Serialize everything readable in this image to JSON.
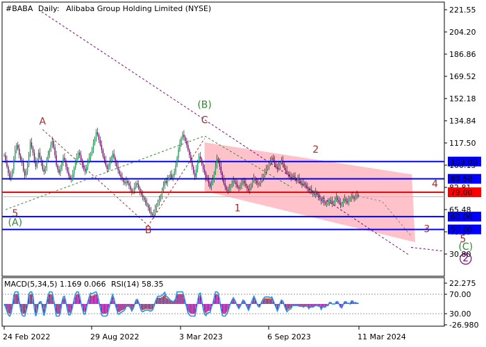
{
  "header": {
    "symbol": "#BABA",
    "timeframe": "Daily:",
    "instrument": "Alibaba Group Holding Limited (NYSE)"
  },
  "indicator": {
    "macd": "MACD(5,34,5) 1.169 0.066",
    "rsi": "RSI(14) 58.35"
  },
  "colors": {
    "bull": "#00b050",
    "bear": "#800080",
    "support_line": "#0000ff",
    "resistance_line": "#ff0000",
    "channel_fill": "#ffb6c1",
    "wave_green": "#2e8b2e",
    "wave_red": "#a52a2a",
    "wave_purple": "#800080",
    "macd_hist": "#800080",
    "rsi_line": "#1e90ff",
    "signal_line": "#ff4500"
  },
  "chart_data": {
    "type": "candlestick",
    "y_axis_labels": [
      "221.55",
      "204.20",
      "186.86",
      "169.52",
      "152.18",
      "134.84",
      "117.50",
      "100.15",
      "82.81",
      "65.48",
      "48.13",
      "30.80"
    ],
    "x_axis_labels": [
      "24 Feb 2022",
      "29 Aug 2022",
      "3 Mar 2023",
      "6 Sep 2023",
      "11 Mar 2024"
    ],
    "ylim": [
      20,
      225
    ],
    "levels": [
      {
        "label": "103.00",
        "value": 103.0,
        "kind": "support"
      },
      {
        "label": "89.50",
        "value": 89.5,
        "kind": "support"
      },
      {
        "label": "79.00",
        "value": 79.0,
        "kind": "resistance"
      },
      {
        "label": "60.00",
        "value": 60.0,
        "kind": "support"
      },
      {
        "label": "50.00",
        "value": 50.0,
        "kind": "support"
      }
    ],
    "current_price": 75.5,
    "closes": [
      108,
      104,
      99,
      94,
      90,
      92,
      96,
      105,
      112,
      116,
      113,
      108,
      104,
      102,
      96,
      92,
      95,
      100,
      109,
      118,
      114,
      110,
      103,
      99,
      104,
      110,
      106,
      102,
      97,
      95,
      98,
      104,
      108,
      112,
      116,
      119,
      114,
      108,
      100,
      97,
      94,
      97,
      102,
      106,
      104,
      99,
      95,
      92,
      90,
      89,
      93,
      98,
      103,
      106,
      110,
      108,
      104,
      100,
      97,
      95,
      99,
      103,
      106,
      109,
      112,
      117,
      121,
      126,
      124,
      120,
      116,
      112,
      107,
      104,
      100,
      97,
      99,
      103,
      106,
      109,
      106,
      102,
      99,
      96,
      93,
      91,
      89,
      87,
      86,
      88,
      86,
      84,
      81,
      79,
      80,
      83,
      86,
      85,
      82,
      79,
      77,
      75,
      73,
      71,
      69,
      67,
      64,
      62,
      61,
      63,
      66,
      69,
      71,
      73,
      76,
      80,
      84,
      88,
      86,
      89,
      91,
      93,
      90,
      92,
      95,
      100,
      106,
      112,
      117,
      121,
      124,
      122,
      119,
      116,
      112,
      108,
      103,
      99,
      94,
      91,
      97,
      103,
      107,
      105,
      101,
      97,
      94,
      90,
      89,
      86,
      83,
      86,
      89,
      94,
      100,
      105,
      103,
      99,
      94,
      90,
      86,
      83,
      81,
      80,
      82,
      84,
      86,
      88,
      87,
      85,
      83,
      82,
      84,
      86,
      88,
      86,
      84,
      82,
      80,
      82,
      85,
      88,
      90,
      88,
      86,
      85,
      86,
      88,
      90,
      92,
      95,
      97,
      99,
      101,
      103,
      106,
      104,
      101,
      99,
      97,
      99,
      102,
      104,
      101,
      98,
      96,
      94,
      93,
      91,
      90,
      92,
      91,
      89,
      88,
      90,
      88,
      86,
      85,
      86,
      85,
      83,
      82,
      80,
      81,
      79,
      78,
      77,
      79,
      77,
      75,
      74,
      72,
      73,
      71,
      70,
      70,
      71,
      73,
      72,
      70,
      71,
      73,
      75,
      73,
      71,
      69,
      70,
      72,
      74,
      72,
      71,
      73,
      74,
      76,
      75,
      74,
      76,
      77,
      76
    ]
  },
  "waves": [
    {
      "label": "A",
      "price": 132,
      "index": 28,
      "color": "wave_red"
    },
    {
      "label": "(B)",
      "price": 145,
      "index": 146,
      "color": "wave_green"
    },
    {
      "label": "C",
      "price": 133,
      "index": 146,
      "color": "wave_red"
    },
    {
      "label": "2",
      "price": 110,
      "index": 227,
      "color": "wave_red"
    },
    {
      "label": "4",
      "price": 83,
      "index": 344,
      "color": "wave_red"
    },
    {
      "label": "5",
      "price": 60,
      "index": 8,
      "color": "wave_red"
    },
    {
      "label": "(A)",
      "price": 53,
      "index": 8,
      "color": "wave_green"
    },
    {
      "label": "B",
      "price": 47,
      "index": 105,
      "color": "wave_red"
    },
    {
      "label": "1",
      "price": 64,
      "index": 170,
      "color": "wave_red"
    },
    {
      "label": "3",
      "price": 48,
      "index": 335,
      "color": "wave_red"
    },
    {
      "label": "5",
      "price": 40,
      "index": 375,
      "color": "wave_red"
    },
    {
      "label": "(C)",
      "price": 34,
      "index": 378,
      "color": "wave_green"
    },
    {
      "label": "2",
      "price": 25,
      "index": 378,
      "color": "wave_purple",
      "circled": true
    }
  ],
  "macd_axis": [
    "22.275",
    "70.00",
    "30.00",
    "-26.980"
  ]
}
